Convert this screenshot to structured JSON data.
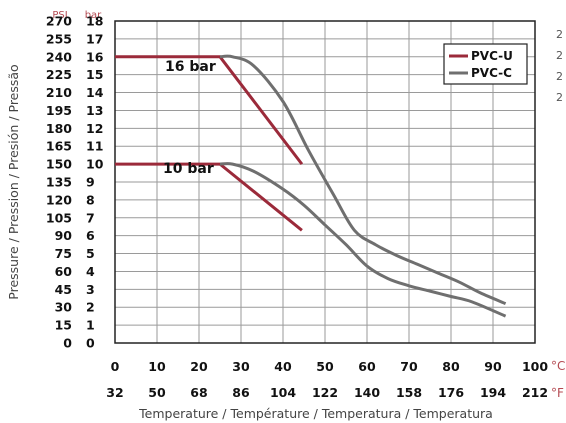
{
  "chart_data": {
    "type": "line",
    "xlabel": "Temperature / Température / Temperatura / Temperatura",
    "ylabel": "Pressure / Pression / Presión / Pressão",
    "y_unit_psi": "PSI",
    "y_unit_bar": "bar",
    "x_unit_c": "°C",
    "x_unit_f": "°F",
    "xlim": [
      0,
      100
    ],
    "ylim": [
      0,
      18
    ],
    "x_ticks": [
      0,
      10,
      20,
      30,
      40,
      50,
      60,
      70,
      80,
      90,
      100
    ],
    "x_ticks_f": [
      32,
      50,
      68,
      86,
      104,
      122,
      140,
      158,
      176,
      194,
      212
    ],
    "y_ticks_bar": [
      0,
      1,
      2,
      3,
      4,
      5,
      6,
      7,
      8,
      9,
      10,
      11,
      12,
      13,
      14,
      15,
      16,
      17,
      18
    ],
    "y_ticks_psi": [
      0,
      15,
      30,
      45,
      60,
      75,
      90,
      105,
      120,
      135,
      150,
      165,
      180,
      195,
      210,
      225,
      240,
      255,
      270
    ],
    "annotations": [
      "16 bar",
      "10 bar"
    ],
    "legend_position": "top-right",
    "grid": true,
    "colors": {
      "PVC-U": "#9b2a3a",
      "PVC-C": "#6f6f6f"
    },
    "series": [
      {
        "name": "PVC-U",
        "class": "16 bar",
        "x": [
          0,
          25,
          44.5
        ],
        "y": [
          16,
          16,
          10
        ]
      },
      {
        "name": "PVC-U",
        "class": "10 bar",
        "x": [
          0,
          25,
          44.5
        ],
        "y": [
          10,
          10,
          6.3
        ]
      },
      {
        "name": "PVC-C",
        "class": "16 bar",
        "x": [
          25,
          28,
          33,
          40,
          46,
          52,
          57,
          62,
          67,
          72,
          77,
          82,
          87,
          93
        ],
        "y": [
          16,
          16,
          15.5,
          13.5,
          10.8,
          8.3,
          6.3,
          5.5,
          4.9,
          4.4,
          3.9,
          3.4,
          2.8,
          2.2
        ]
      },
      {
        "name": "PVC-C",
        "class": "10 bar",
        "x": [
          25,
          28,
          33,
          40,
          45,
          50,
          55,
          60,
          65,
          70,
          75,
          80,
          85,
          93
        ],
        "y": [
          10,
          10,
          9.6,
          8.6,
          7.7,
          6.6,
          5.5,
          4.3,
          3.6,
          3.2,
          2.9,
          2.6,
          2.3,
          1.5
        ]
      }
    ]
  },
  "side_text": [
    "2",
    "2",
    "2",
    "2"
  ]
}
